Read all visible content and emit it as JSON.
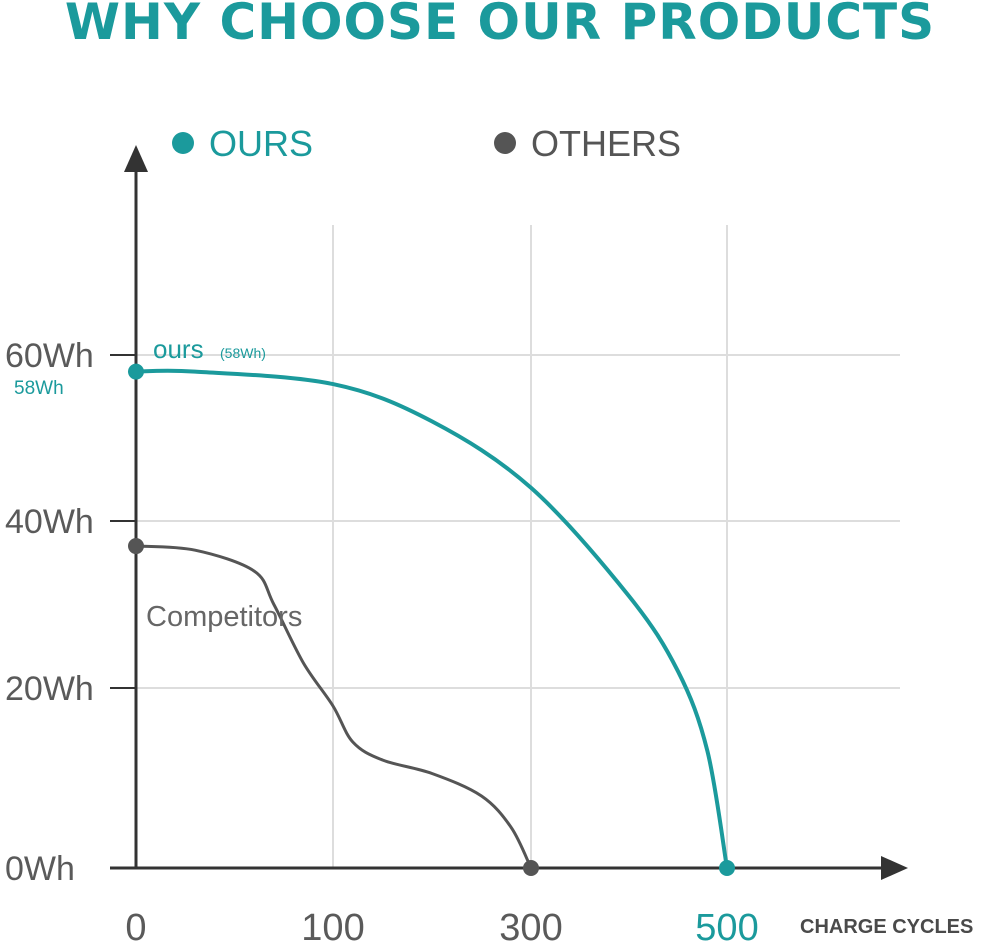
{
  "title": "WHY CHOOSE OUR PRODUCTS",
  "colors": {
    "ours": "#1b9a9c",
    "others": "#555555",
    "grid": "#dddddd",
    "axis": "#333333"
  },
  "chart_data": {
    "type": "line",
    "xlabel": "CHARGE CYCLES",
    "ylabel": "",
    "x_ticks": [
      "0",
      "100",
      "300",
      "500"
    ],
    "y_ticks": [
      "0Wh",
      "20Wh",
      "40Wh",
      "60Wh"
    ],
    "legend": {
      "position": "top",
      "entries": [
        "OURS",
        "OTHERS"
      ]
    },
    "grid": true,
    "series": [
      {
        "name": "OURS",
        "label": "ours",
        "label_note": "(58Wh)",
        "start_label": "58Wh",
        "color": "#1b9a9c",
        "points": [
          [
            0,
            58
          ],
          [
            30,
            58
          ],
          [
            100,
            56.5
          ],
          [
            200,
            52
          ],
          [
            300,
            44
          ],
          [
            400,
            31
          ],
          [
            450,
            22
          ],
          [
            480,
            13
          ],
          [
            500,
            0
          ]
        ]
      },
      {
        "name": "OTHERS",
        "label": "Competitors",
        "color": "#555555",
        "points": [
          [
            0,
            37
          ],
          [
            30,
            36.5
          ],
          [
            60,
            34
          ],
          [
            70,
            30
          ],
          [
            85,
            23
          ],
          [
            100,
            18
          ],
          [
            120,
            14
          ],
          [
            150,
            12
          ],
          [
            200,
            10.5
          ],
          [
            250,
            8
          ],
          [
            280,
            4.5
          ],
          [
            300,
            0
          ]
        ]
      }
    ]
  }
}
